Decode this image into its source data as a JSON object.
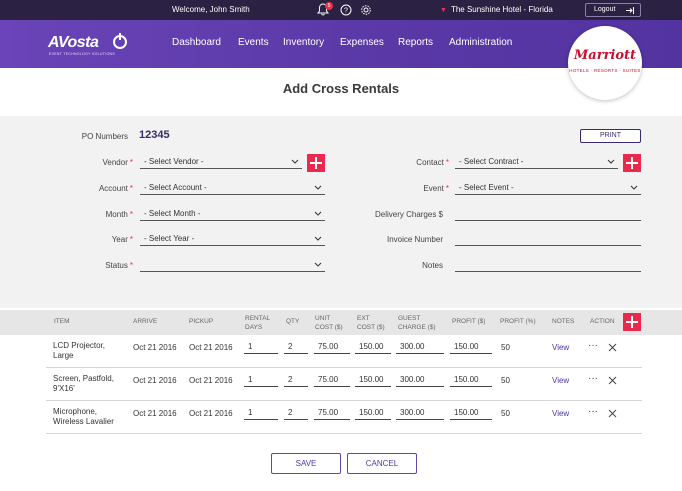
{
  "topbar": {
    "welcome": "Welcome,",
    "user": "John Smith",
    "notifications_count": "5",
    "hotel": "The Sunshine Hotel - Florida",
    "logout": "Logout"
  },
  "nav": {
    "logo": "AVosta",
    "logo_sub": "EVENT TECHNOLOGY SOLUTIONS",
    "items": [
      "Dashboard",
      "Events",
      "Inventory",
      "Expenses",
      "Reports",
      "Administration"
    ],
    "brand": "Marriott",
    "brand_sub": "HOTELS · RESORTS · SUITES"
  },
  "page": {
    "title": "Add Cross Rentals"
  },
  "form": {
    "po_label": "PO Numbers",
    "po_value": "12345",
    "print": "PRINT",
    "vendor_label": "Vendor",
    "vendor_value": "- Select Vendor -",
    "account_label": "Account",
    "account_value": "- Select Account -",
    "month_label": "Month",
    "month_value": "- Select Month -",
    "year_label": "Year",
    "year_value": "- Select Year -",
    "status_label": "Status",
    "status_value": "",
    "contact_label": "Contact",
    "contact_value": "- Select Contract -",
    "event_label": "Event",
    "event_value": "- Select Event -",
    "delivery_label": "Delivery Charges $",
    "invoice_label": "Invoice Number",
    "notes_label": "Notes",
    "required_mark": "*"
  },
  "table": {
    "headers": {
      "item": "ITEM",
      "arrive": "ARRIVE",
      "pickup": "PICKUP",
      "rental_days_1": "RENTAL",
      "rental_days_2": "DAYS",
      "qty": "QTY",
      "unit_cost_1": "UNIT",
      "unit_cost_2": "COST ($)",
      "ext_cost_1": "EXT",
      "ext_cost_2": "COST ($)",
      "guest_charge_1": "GUEST",
      "guest_charge_2": "CHARGE ($)",
      "profit_usd": "PROFIT ($)",
      "profit_pct": "PROFIT (%)",
      "notes": "NOTES",
      "action": "ACTION"
    },
    "rows": [
      {
        "item_1": "LCD Projector,",
        "item_2": "Large",
        "arrive": "Oct 21 2016",
        "pickup": "Oct 21 2016",
        "days": "1",
        "qty": "2",
        "unit_cost": "75.00",
        "ext_cost": "150.00",
        "guest_charge": "300.00",
        "profit_usd": "150.00",
        "profit_pct": "50",
        "notes": "View"
      },
      {
        "item_1": "Screen, Pastfold,",
        "item_2": "9'X16'",
        "arrive": "Oct 21 2016",
        "pickup": "Oct 21 2016",
        "days": "1",
        "qty": "2",
        "unit_cost": "75.00",
        "ext_cost": "150.00",
        "guest_charge": "300.00",
        "profit_usd": "150.00",
        "profit_pct": "50",
        "notes": "View"
      },
      {
        "item_1": "Microphone,",
        "item_2": "Wireless Lavalier",
        "arrive": "Oct 21 2016",
        "pickup": "Oct 21 2016",
        "days": "1",
        "qty": "2",
        "unit_cost": "75.00",
        "ext_cost": "150.00",
        "guest_charge": "300.00",
        "profit_usd": "150.00",
        "profit_pct": "50",
        "notes": "View"
      }
    ],
    "more_glyph": "···"
  },
  "footer": {
    "save": "SAVE",
    "cancel": "CANCEL"
  },
  "colors": {
    "accent": "#ea2a4d",
    "primary": "#5b3aa8",
    "topbar": "#2b2142"
  }
}
